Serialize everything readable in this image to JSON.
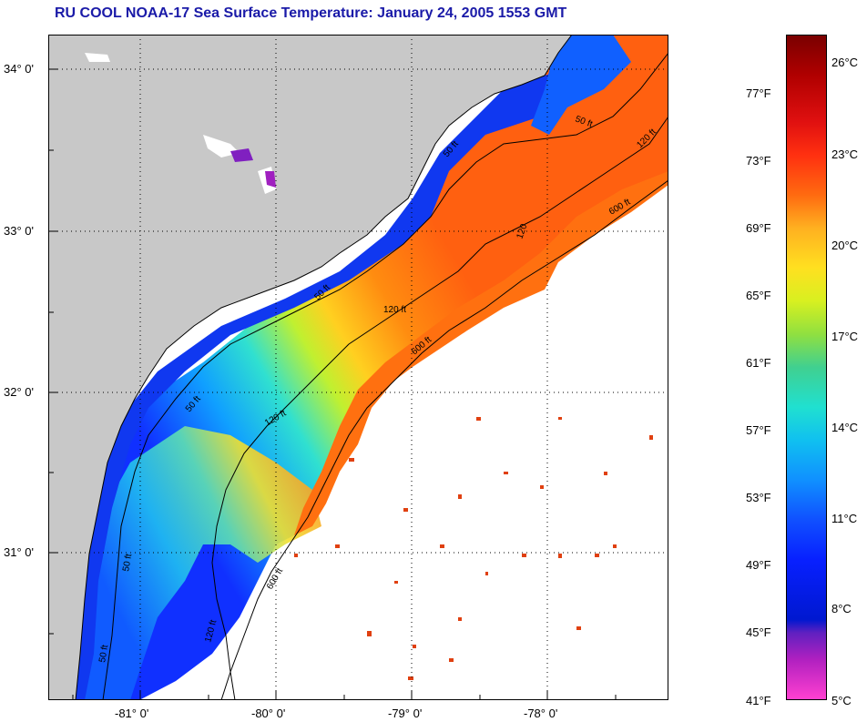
{
  "title": "RU COOL  NOAA-17  Sea Surface Temperature:  January 24, 2005 1553 GMT",
  "lat_labels": [
    "34° 0'",
    "33° 0'",
    "32° 0'",
    "31° 0'"
  ],
  "lon_labels": [
    "-81° 0'",
    "-80° 0'",
    "-79° 0'",
    "-78° 0'"
  ],
  "contour_labels": [
    "50 ft",
    "50 ft",
    "50 ft",
    "50 ft",
    "50 ft",
    "120 ft",
    "120 ft",
    "120",
    "120 ft",
    "600 ft",
    "600 ft",
    "600 ft",
    "50 ft",
    "120 ft"
  ],
  "colorbar": {
    "fahrenheit": [
      "77°F",
      "73°F",
      "69°F",
      "65°F",
      "61°F",
      "57°F",
      "53°F",
      "49°F",
      "45°F",
      "41°F"
    ],
    "celsius": [
      "26°C",
      "23°C",
      "20°C",
      "17°C",
      "14°C",
      "11°C",
      "8°C",
      "5°C"
    ]
  },
  "colors": {
    "land": "#c8c8c8",
    "no_data": "#ffffff",
    "title": "#1a1aa8",
    "nearshore": "#1040ff",
    "gulf_stream": "#ff6a10"
  }
}
